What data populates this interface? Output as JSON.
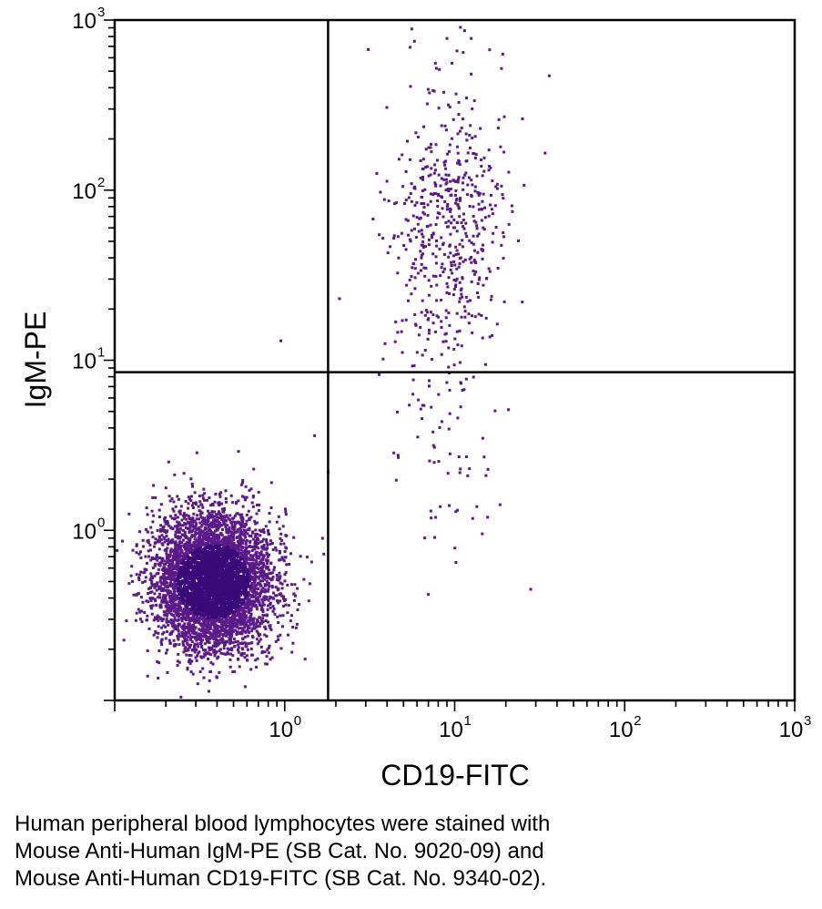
{
  "chart_data": {
    "type": "scatter",
    "title": "",
    "xlabel": "CD19-FITC",
    "ylabel": "IgM-PE",
    "xscale": "log",
    "yscale": "log",
    "xlim": [
      0.1,
      1000
    ],
    "ylim": [
      0.1,
      1000
    ],
    "x_ticks": [
      {
        "base": "10",
        "exp": "0",
        "value": 1
      },
      {
        "base": "10",
        "exp": "1",
        "value": 10
      },
      {
        "base": "10",
        "exp": "2",
        "value": 100
      },
      {
        "base": "10",
        "exp": "3",
        "value": 1000
      }
    ],
    "y_ticks": [
      {
        "base": "10",
        "exp": "0",
        "value": 1
      },
      {
        "base": "10",
        "exp": "1",
        "value": 10
      },
      {
        "base": "10",
        "exp": "2",
        "value": 100
      },
      {
        "base": "10",
        "exp": "3",
        "value": 1000
      }
    ],
    "quadrant_gates": {
      "x": 1.8,
      "y": 8.5
    },
    "point_color": "#5b1a8a",
    "dense_color": "#3a0a78",
    "grid": false,
    "populations": [
      {
        "x_geo_center": 0.38,
        "y_geo_center": 0.5,
        "x_log_sd": 0.17,
        "y_log_sd": 0.2,
        "count": 5200,
        "region": "lower-left"
      },
      {
        "x_geo_center": 9.0,
        "y_geo_center": 60,
        "x_log_sd": 0.17,
        "y_log_sd": 0.42,
        "count": 560,
        "region": "upper-right"
      },
      {
        "x_geo_center": 9.5,
        "y_geo_center": 2.6,
        "x_log_sd": 0.17,
        "y_log_sd": 0.28,
        "count": 55,
        "region": "lower-right"
      }
    ],
    "outliers": [
      {
        "x": 0.95,
        "y": 13
      },
      {
        "x": 5.8,
        "y": 750
      },
      {
        "x": 9,
        "y": 780
      },
      {
        "x": 12.5,
        "y": 780
      },
      {
        "x": 36,
        "y": 470
      },
      {
        "x": 34,
        "y": 165
      },
      {
        "x": 25,
        "y": 22
      },
      {
        "x": 2.1,
        "y": 23
      },
      {
        "x": 7,
        "y": 0.42
      },
      {
        "x": 28,
        "y": 0.45
      },
      {
        "x": 1.5,
        "y": 3.6
      },
      {
        "x": 1.8,
        "y": 2.2
      }
    ]
  },
  "caption": [
    "Human peripheral blood lymphocytes were stained with",
    "Mouse Anti-Human IgM-PE (SB Cat. No. 9020-09) and",
    "Mouse Anti-Human CD19-FITC (SB Cat. No. 9340-02)."
  ]
}
